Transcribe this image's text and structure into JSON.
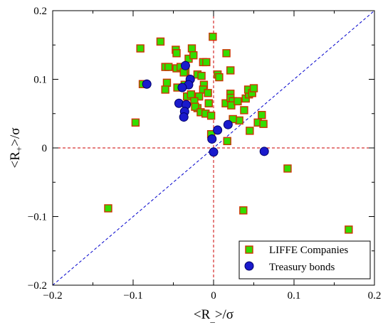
{
  "chart_data": {
    "type": "scatter",
    "xlabel": {
      "open": "<R",
      "sub": "_",
      "close": ">/σ"
    },
    "ylabel": {
      "open": "<R",
      "sub": "+",
      "close": ">/σ"
    },
    "xlim": [
      -0.2,
      0.2
    ],
    "ylim": [
      -0.2,
      0.2
    ],
    "xticks": [
      -0.2,
      -0.1,
      0,
      0.1,
      0.2
    ],
    "yticks": [
      -0.2,
      -0.1,
      0,
      0.1,
      0.2
    ],
    "xtick_labels": [
      "−0.2",
      "−0.1",
      "0",
      "0.1",
      "0.2"
    ],
    "ytick_labels": [
      "−0.2",
      "−0.1",
      "0",
      "0.1",
      "0.2"
    ],
    "reference_lines": [
      {
        "kind": "vertical",
        "value": 0,
        "color": "#cc0000",
        "style": "dashed"
      },
      {
        "kind": "horizontal",
        "value": 0,
        "color": "#cc0000",
        "style": "dashed"
      },
      {
        "kind": "diagonal",
        "equation": "y = x",
        "color": "#0000cc",
        "style": "dashed"
      }
    ],
    "legend_position": "bottom-right",
    "series": [
      {
        "name": "LIFFE Companies",
        "marker": "square",
        "fill": "#33dd00",
        "stroke": "#cc3300",
        "points": [
          [
            -0.091,
            0.145
          ],
          [
            -0.066,
            0.155
          ],
          [
            -0.001,
            0.162
          ],
          [
            -0.088,
            0.093
          ],
          [
            -0.06,
            0.118
          ],
          [
            -0.056,
            0.118
          ],
          [
            -0.047,
            0.143
          ],
          [
            -0.046,
            0.138
          ],
          [
            -0.046,
            0.116
          ],
          [
            -0.041,
            0.118
          ],
          [
            -0.035,
            0.112
          ],
          [
            -0.031,
            0.13
          ],
          [
            -0.027,
            0.145
          ],
          [
            -0.025,
            0.135
          ],
          [
            -0.013,
            0.125
          ],
          [
            -0.009,
            0.125
          ],
          [
            -0.037,
            0.11
          ],
          [
            -0.02,
            0.107
          ],
          [
            -0.015,
            0.105
          ],
          [
            0.005,
            0.107
          ],
          [
            0.007,
            0.103
          ],
          [
            0.016,
            0.138
          ],
          [
            0.021,
            0.113
          ],
          [
            -0.058,
            0.095
          ],
          [
            -0.045,
            0.088
          ],
          [
            -0.036,
            0.092
          ],
          [
            -0.033,
            0.075
          ],
          [
            -0.028,
            0.078
          ],
          [
            -0.06,
            0.085
          ],
          [
            -0.012,
            0.092
          ],
          [
            -0.013,
            0.085
          ],
          [
            -0.007,
            0.08
          ],
          [
            -0.018,
            0.075
          ],
          [
            -0.024,
            0.068
          ],
          [
            -0.02,
            0.058
          ],
          [
            -0.023,
            0.06
          ],
          [
            -0.006,
            0.065
          ],
          [
            -0.016,
            0.052
          ],
          [
            -0.01,
            0.05
          ],
          [
            -0.003,
            0.047
          ],
          [
            0.015,
            0.065
          ],
          [
            0.021,
            0.079
          ],
          [
            0.021,
            0.073
          ],
          [
            0.024,
            0.068
          ],
          [
            0.022,
            0.062
          ],
          [
            0.03,
            0.068
          ],
          [
            0.04,
            0.072
          ],
          [
            0.044,
            0.078
          ],
          [
            0.043,
            0.085
          ],
          [
            0.048,
            0.08
          ],
          [
            0.05,
            0.087
          ],
          [
            0.038,
            0.055
          ],
          [
            0.06,
            0.048
          ],
          [
            0.055,
            0.037
          ],
          [
            0.062,
            0.035
          ],
          [
            0.032,
            0.04
          ],
          [
            0.024,
            0.042
          ],
          [
            0.045,
            0.025
          ],
          [
            0.017,
            0.01
          ],
          [
            -0.003,
            0.02
          ],
          [
            -0.097,
            0.037
          ],
          [
            0.092,
            -0.03
          ],
          [
            0.037,
            -0.091
          ],
          [
            -0.131,
            -0.088
          ],
          [
            0.168,
            -0.119
          ]
        ]
      },
      {
        "name": "Treasury bonds",
        "marker": "circle",
        "fill": "#1a1acc",
        "stroke": "#000066",
        "points": [
          [
            -0.083,
            0.093
          ],
          [
            -0.035,
            0.12
          ],
          [
            -0.029,
            0.1
          ],
          [
            -0.031,
            0.092
          ],
          [
            -0.039,
            0.088
          ],
          [
            -0.043,
            0.065
          ],
          [
            -0.034,
            0.063
          ],
          [
            -0.036,
            0.053
          ],
          [
            -0.037,
            0.045
          ],
          [
            0.018,
            0.034
          ],
          [
            0.005,
            0.026
          ],
          [
            -0.002,
            0.013
          ],
          [
            0,
            -0.006
          ],
          [
            0.063,
            -0.005
          ]
        ]
      }
    ]
  }
}
